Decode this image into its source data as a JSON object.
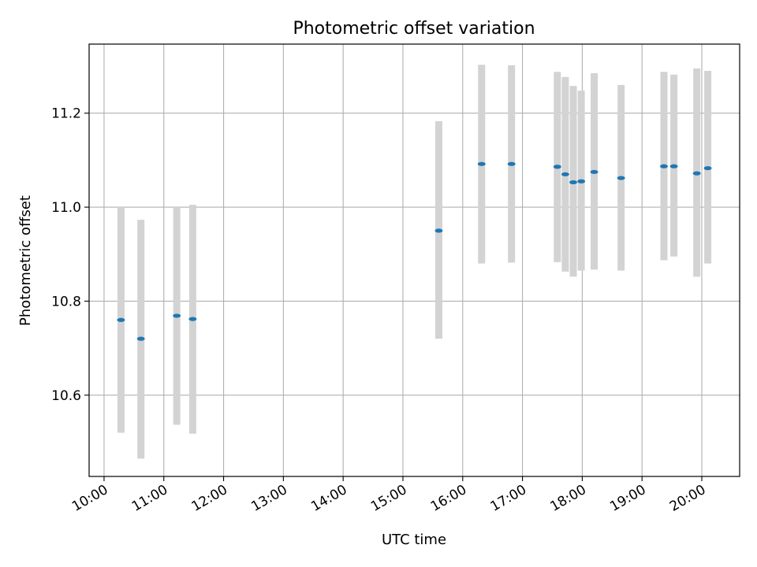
{
  "chart_data": {
    "type": "scatter",
    "title": "Photometric offset variation",
    "xlabel": "UTC time",
    "ylabel": "Photometric offset",
    "x_axis": {
      "scale": "time",
      "range": [
        "09:45",
        "20:38"
      ],
      "ticks": [
        "10:00",
        "11:00",
        "12:00",
        "13:00",
        "14:00",
        "15:00",
        "16:00",
        "17:00",
        "18:00",
        "19:00",
        "20:00"
      ]
    },
    "y_axis": {
      "range": [
        10.427,
        11.347
      ],
      "ticks": [
        "10.6",
        "10.8",
        "11.0",
        "11.2"
      ]
    },
    "grid": true,
    "colors": {
      "marker": "#1f77b4",
      "errorbar": "#d3d3d3",
      "grid": "#b0b0b0"
    },
    "points": [
      {
        "time": "10:17",
        "value": 10.76,
        "low": 10.52,
        "high": 11.0
      },
      {
        "time": "10:37",
        "value": 10.72,
        "low": 10.465,
        "high": 10.973
      },
      {
        "time": "11:13",
        "value": 10.769,
        "low": 10.537,
        "high": 11.0
      },
      {
        "time": "11:29",
        "value": 10.762,
        "low": 10.518,
        "high": 11.005
      },
      {
        "time": "15:36",
        "value": 10.95,
        "low": 10.72,
        "high": 11.183
      },
      {
        "time": "16:19",
        "value": 11.092,
        "low": 10.88,
        "high": 11.303
      },
      {
        "time": "16:49",
        "value": 11.092,
        "low": 10.882,
        "high": 11.302
      },
      {
        "time": "17:35",
        "value": 11.086,
        "low": 10.883,
        "high": 11.288
      },
      {
        "time": "17:43",
        "value": 11.07,
        "low": 10.863,
        "high": 11.277
      },
      {
        "time": "17:51",
        "value": 11.053,
        "low": 10.852,
        "high": 11.258
      },
      {
        "time": "17:59",
        "value": 11.055,
        "low": 10.865,
        "high": 11.248
      },
      {
        "time": "18:12",
        "value": 11.075,
        "low": 10.867,
        "high": 11.285
      },
      {
        "time": "18:39",
        "value": 11.062,
        "low": 10.865,
        "high": 11.26
      },
      {
        "time": "19:22",
        "value": 11.087,
        "low": 10.887,
        "high": 11.288
      },
      {
        "time": "19:32",
        "value": 11.087,
        "low": 10.895,
        "high": 11.282
      },
      {
        "time": "19:55",
        "value": 11.072,
        "low": 10.852,
        "high": 11.295
      },
      {
        "time": "20:06",
        "value": 11.083,
        "low": 10.88,
        "high": 11.29
      }
    ]
  }
}
